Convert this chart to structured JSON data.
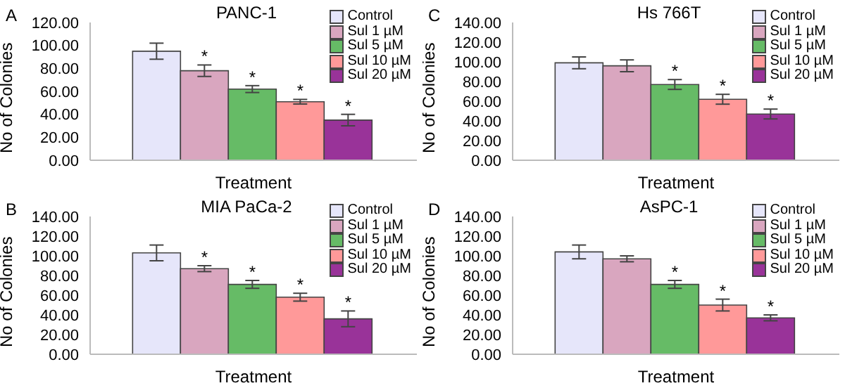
{
  "chart_data": [
    {
      "type": "bar",
      "title": "PANC-1",
      "xlabel": "Treatment",
      "ylabel": "No of Colonies",
      "annotations": [
        "A"
      ],
      "categories": [
        null
      ],
      "legend": "top right",
      "grid": false,
      "ylim": [
        0,
        120
      ],
      "yticks": [
        {
          "value": 0,
          "label": "0.00"
        },
        {
          "value": 20,
          "label": "20.00"
        },
        {
          "value": 40,
          "label": "40.00"
        },
        {
          "value": 60,
          "label": "60.00"
        },
        {
          "value": 80,
          "label": "80.00"
        },
        {
          "value": 100,
          "label": "100.00"
        },
        {
          "value": 120,
          "label": "120.00"
        }
      ],
      "series": [
        {
          "name": "Control",
          "color": "#e6e6fa",
          "values": [
            95
          ],
          "errors": [
            7
          ]
        },
        {
          "name": "Sul 1 µM",
          "color": "#d9a6bf",
          "values": [
            78
          ],
          "errors": [
            5
          ],
          "value_labels": [
            "*"
          ]
        },
        {
          "name": "Sul 5 µM",
          "color": "#66bb66",
          "values": [
            62
          ],
          "errors": [
            3
          ],
          "value_labels": [
            "*"
          ]
        },
        {
          "name": "Sul 10 µM",
          "color": "#ff9999",
          "values": [
            51
          ],
          "errors": [
            2
          ],
          "value_labels": [
            "*"
          ]
        },
        {
          "name": "Sul 20 µM",
          "color": "#993399",
          "values": [
            35
          ],
          "errors": [
            5
          ],
          "value_labels": [
            "*"
          ]
        }
      ]
    },
    {
      "type": "bar",
      "title": "Hs 766T",
      "xlabel": "Treatment",
      "ylabel": "No of Colonies",
      "annotations": [
        "C"
      ],
      "categories": [
        null
      ],
      "legend": "top right",
      "grid": false,
      "ylim": [
        0,
        140
      ],
      "yticks": [
        {
          "value": 0,
          "label": "0.00"
        },
        {
          "value": 20,
          "label": "20.00"
        },
        {
          "value": 40,
          "label": "40.00"
        },
        {
          "value": 60,
          "label": "60.00"
        },
        {
          "value": 80,
          "label": "80.00"
        },
        {
          "value": 100,
          "label": "100.00"
        },
        {
          "value": 120,
          "label": "120.00"
        },
        {
          "value": 140,
          "label": "140.00"
        }
      ],
      "series": [
        {
          "name": "Control",
          "color": "#e6e6fa",
          "values": [
            99
          ],
          "errors": [
            6
          ]
        },
        {
          "name": "Sul 1 µM",
          "color": "#d9a6bf",
          "values": [
            96
          ],
          "errors": [
            6
          ]
        },
        {
          "name": "Sul 5 µM",
          "color": "#66bb66",
          "values": [
            77
          ],
          "errors": [
            5
          ],
          "value_labels": [
            "*"
          ]
        },
        {
          "name": "Sul 10 µM",
          "color": "#ff9999",
          "values": [
            62
          ],
          "errors": [
            5
          ],
          "value_labels": [
            "*"
          ]
        },
        {
          "name": "Sul 20 µM",
          "color": "#993399",
          "values": [
            47
          ],
          "errors": [
            5
          ],
          "value_labels": [
            "*"
          ]
        }
      ]
    },
    {
      "type": "bar",
      "title": "MIA PaCa-2",
      "xlabel": "Treatment",
      "ylabel": "No of Colonies",
      "annotations": [
        "B"
      ],
      "categories": [
        null
      ],
      "legend": "top right",
      "grid": false,
      "ylim": [
        0,
        140
      ],
      "yticks": [
        {
          "value": 0,
          "label": "0.00"
        },
        {
          "value": 20,
          "label": "20.00"
        },
        {
          "value": 40,
          "label": "40.00"
        },
        {
          "value": 60,
          "label": "60.00"
        },
        {
          "value": 80,
          "label": "80.00"
        },
        {
          "value": 100,
          "label": "100.00"
        },
        {
          "value": 120,
          "label": "120.00"
        },
        {
          "value": 140,
          "label": "140.00"
        }
      ],
      "series": [
        {
          "name": "Control",
          "color": "#e6e6fa",
          "values": [
            103
          ],
          "errors": [
            8
          ]
        },
        {
          "name": "Sul 1 µM",
          "color": "#d9a6bf",
          "values": [
            87
          ],
          "errors": [
            3
          ],
          "value_labels": [
            "*"
          ]
        },
        {
          "name": "Sul 5 µM",
          "color": "#66bb66",
          "values": [
            71
          ],
          "errors": [
            4
          ],
          "value_labels": [
            "*"
          ]
        },
        {
          "name": "Sul 10 µM",
          "color": "#ff9999",
          "values": [
            58
          ],
          "errors": [
            4
          ],
          "value_labels": [
            "*"
          ]
        },
        {
          "name": "Sul 20 µM",
          "color": "#993399",
          "values": [
            36
          ],
          "errors": [
            8
          ],
          "value_labels": [
            "*"
          ]
        }
      ]
    },
    {
      "type": "bar",
      "title": "AsPC-1",
      "xlabel": "Treatment",
      "ylabel": "No of Colonies",
      "annotations": [
        "D"
      ],
      "categories": [
        null
      ],
      "legend": "top right",
      "grid": false,
      "ylim": [
        0,
        140
      ],
      "yticks": [
        {
          "value": 0,
          "label": "0.00"
        },
        {
          "value": 20,
          "label": "20.00"
        },
        {
          "value": 40,
          "label": "40.00"
        },
        {
          "value": 60,
          "label": "60.00"
        },
        {
          "value": 80,
          "label": "80.00"
        },
        {
          "value": 100,
          "label": "100.00"
        },
        {
          "value": 120,
          "label": "120.00"
        },
        {
          "value": 140,
          "label": "140.00"
        }
      ],
      "series": [
        {
          "name": "Control",
          "color": "#e6e6fa",
          "values": [
            104
          ],
          "errors": [
            7
          ]
        },
        {
          "name": "Sul 1 µM",
          "color": "#d9a6bf",
          "values": [
            97
          ],
          "errors": [
            3
          ]
        },
        {
          "name": "Sul 5 µM",
          "color": "#66bb66",
          "values": [
            71
          ],
          "errors": [
            4
          ],
          "value_labels": [
            "*"
          ]
        },
        {
          "name": "Sul 10 µM",
          "color": "#ff9999",
          "values": [
            50
          ],
          "errors": [
            6
          ],
          "value_labels": [
            "*"
          ]
        },
        {
          "name": "Sul 20 µM",
          "color": "#993399",
          "values": [
            37
          ],
          "errors": [
            3
          ],
          "value_labels": [
            "*"
          ]
        }
      ]
    }
  ]
}
